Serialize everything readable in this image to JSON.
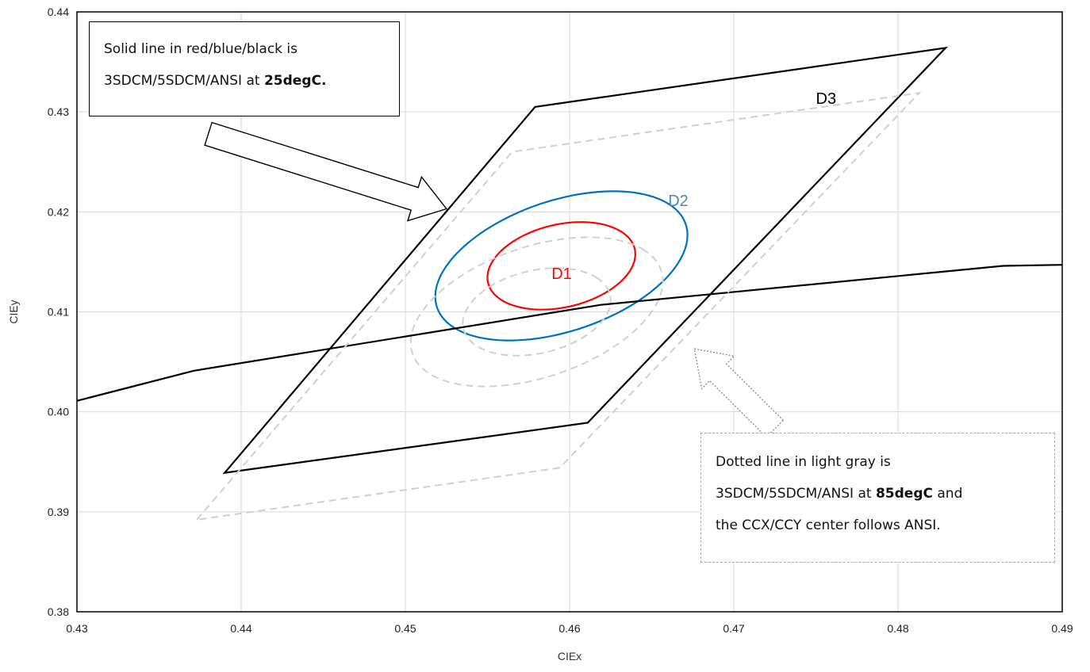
{
  "chart_data": {
    "type": "line",
    "xlabel": "CIEx",
    "ylabel": "CIEy",
    "xlim": [
      0.43,
      0.49
    ],
    "ylim": [
      0.38,
      0.44
    ],
    "x_ticks": [
      "0.43",
      "0.44",
      "0.45",
      "0.46",
      "0.47",
      "0.48",
      "0.49"
    ],
    "y_ticks": [
      "0.38",
      "0.39",
      "0.40",
      "0.41",
      "0.42",
      "0.43",
      "0.44"
    ],
    "grid": true,
    "series": [
      {
        "name": "",
        "style": "solid",
        "color": "#000000",
        "closed": false,
        "points": [
          [
            0.43,
            0.4011
          ],
          [
            0.4371,
            0.4041
          ],
          [
            0.4619,
            0.4107
          ],
          [
            0.4864,
            0.4146
          ],
          [
            0.49,
            0.4147
          ]
        ]
      },
      {
        "name": "D3",
        "style": "solid",
        "color": "#000000",
        "closed": true,
        "points": [
          [
            0.439,
            0.3939
          ],
          [
            0.4579,
            0.4305
          ],
          [
            0.4829,
            0.4364
          ],
          [
            0.4611,
            0.3989
          ]
        ]
      },
      {
        "name": "",
        "style": "dashed",
        "color": "#d0d0d0",
        "closed": true,
        "points": [
          [
            0.4373,
            0.3892
          ],
          [
            0.4565,
            0.426
          ],
          [
            0.4813,
            0.4319
          ],
          [
            0.4594,
            0.3944
          ]
        ]
      }
    ],
    "ellipses": [
      {
        "name": "D1",
        "style": "solid",
        "color": "#ff0000",
        "center": [
          0.4595,
          0.4146
        ],
        "rx": 0.005,
        "ry": 0.0038,
        "angle_deg": 42
      },
      {
        "name": "D2",
        "style": "solid",
        "color": "#0070c0",
        "center": [
          0.4595,
          0.4146
        ],
        "rx": 0.009,
        "ry": 0.0058,
        "angle_deg": 43
      },
      {
        "name": "",
        "style": "dashed",
        "color": "#d0d0d0",
        "center": [
          0.458,
          0.41
        ],
        "rx": 0.005,
        "ry": 0.0038,
        "angle_deg": 42
      },
      {
        "name": "",
        "style": "dashed",
        "color": "#d0d0d0",
        "center": [
          0.458,
          0.41
        ],
        "rx": 0.009,
        "ry": 0.0058,
        "angle_deg": 43
      }
    ],
    "region_labels": [
      {
        "text": "D1",
        "color": "#ff0000",
        "at": [
          0.4589,
          0.4133
        ]
      },
      {
        "text": "D2",
        "color": "#4f81bd",
        "at": [
          0.466,
          0.4206
        ]
      },
      {
        "text": "D3",
        "color": "#000000",
        "at": [
          0.475,
          0.4308
        ]
      }
    ],
    "arrows": [
      {
        "style": "solid",
        "from": [
          0.438,
          0.4278
        ],
        "to": [
          0.4525,
          0.4203
        ]
      },
      {
        "style": "dotted",
        "from": [
          0.4725,
          0.3983
        ],
        "to": [
          0.4676,
          0.4063
        ]
      }
    ],
    "annotations": {
      "solid_note": {
        "line1": "Solid line in red/blue/black is",
        "line2_pre": "3SDCM/5SDCM/ANSI at ",
        "line2_bold": "25degC."
      },
      "dotted_note": {
        "line1": "Dotted line in light gray is",
        "line2_pre": "3SDCM/5SDCM/ANSI at ",
        "line2_bold": "85degC",
        "line2_post": " and",
        "line3": "the CCX/CCY center follows ANSI."
      }
    }
  }
}
